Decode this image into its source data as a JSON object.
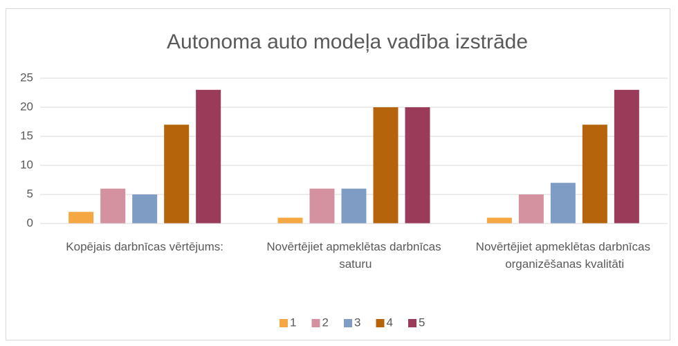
{
  "chart_data": {
    "type": "bar",
    "title": "Autonoma auto modeļa vadība izstrāde",
    "categories": [
      "Kopējais darbnīcas vērtējums:",
      "Novērtējiet apmeklētas darbnīcas saturu",
      "Novērtējiet apmeklētas darbnīcas organizēšanas kvalitāti"
    ],
    "series": [
      {
        "name": "1",
        "color": "#f4a742",
        "values": [
          2,
          1,
          1
        ]
      },
      {
        "name": "2",
        "color": "#d4919f",
        "values": [
          6,
          6,
          5
        ]
      },
      {
        "name": "3",
        "color": "#7f9cc4",
        "values": [
          5,
          6,
          7
        ]
      },
      {
        "name": "4",
        "color": "#b5640c",
        "values": [
          17,
          20,
          17
        ]
      },
      {
        "name": "5",
        "color": "#9a3b5a",
        "values": [
          23,
          20,
          23
        ]
      }
    ],
    "ylim": [
      0,
      25
    ],
    "yticks": [
      0,
      5,
      10,
      15,
      20,
      25
    ],
    "grid": true,
    "legend": "bottom"
  }
}
